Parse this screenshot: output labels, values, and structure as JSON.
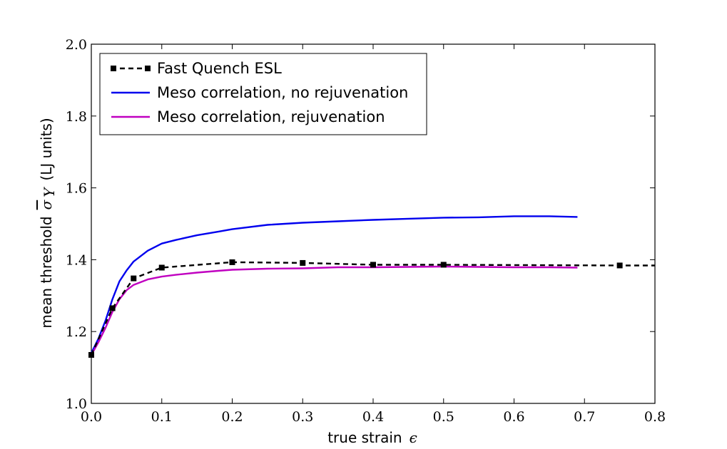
{
  "chart_data": {
    "type": "line",
    "title": "",
    "xlabel": "true strain",
    "xlabel_symbol": "ϵ",
    "ylabel_prefix": "mean threshold",
    "ylabel_symbol": "σ",
    "ylabel_subscript": "Y",
    "ylabel_suffix": "(LJ units)",
    "xlim": [
      0.0,
      0.8
    ],
    "ylim": [
      1.0,
      2.0
    ],
    "xticks": [
      "0.0",
      "0.1",
      "0.2",
      "0.3",
      "0.4",
      "0.5",
      "0.6",
      "0.7",
      "0.8"
    ],
    "yticks": [
      "1.0",
      "1.2",
      "1.4",
      "1.6",
      "1.8",
      "2.0"
    ],
    "grid": false,
    "legend_position": "top-left",
    "series": [
      {
        "name": "Fast Quench ESL",
        "color": "#000000",
        "style": "dashed-square-markers",
        "x": [
          0.0,
          0.03,
          0.06,
          0.1,
          0.2,
          0.3,
          0.4,
          0.5,
          0.75,
          0.8
        ],
        "y": [
          1.135,
          1.265,
          1.348,
          1.378,
          1.393,
          1.391,
          1.386,
          1.386,
          1.384,
          1.384
        ],
        "markers_x": [
          0.0,
          0.03,
          0.06,
          0.1,
          0.2,
          0.3,
          0.4,
          0.5,
          0.75
        ],
        "markers_y": [
          1.135,
          1.265,
          1.348,
          1.378,
          1.393,
          1.391,
          1.386,
          1.386,
          1.384
        ]
      },
      {
        "name": "Meso correlation, no rejuvenation",
        "color": "#0000ee",
        "style": "solid",
        "x": [
          0.0,
          0.01,
          0.02,
          0.03,
          0.04,
          0.05,
          0.06,
          0.08,
          0.1,
          0.12,
          0.15,
          0.18,
          0.2,
          0.25,
          0.3,
          0.35,
          0.4,
          0.45,
          0.5,
          0.55,
          0.6,
          0.65,
          0.69
        ],
        "y": [
          1.14,
          1.18,
          1.23,
          1.29,
          1.34,
          1.37,
          1.395,
          1.425,
          1.445,
          1.455,
          1.468,
          1.478,
          1.485,
          1.497,
          1.503,
          1.507,
          1.511,
          1.514,
          1.517,
          1.518,
          1.521,
          1.521,
          1.519
        ]
      },
      {
        "name": "Meso correlation, rejuvenation",
        "color": "#c000c0",
        "style": "solid",
        "x": [
          0.0,
          0.01,
          0.02,
          0.03,
          0.04,
          0.05,
          0.06,
          0.08,
          0.1,
          0.12,
          0.15,
          0.18,
          0.2,
          0.25,
          0.3,
          0.35,
          0.4,
          0.45,
          0.5,
          0.55,
          0.6,
          0.65,
          0.69
        ],
        "y": [
          1.135,
          1.17,
          1.21,
          1.255,
          1.29,
          1.315,
          1.33,
          1.345,
          1.353,
          1.358,
          1.364,
          1.369,
          1.372,
          1.375,
          1.376,
          1.379,
          1.379,
          1.38,
          1.381,
          1.38,
          1.379,
          1.379,
          1.378
        ]
      }
    ]
  }
}
